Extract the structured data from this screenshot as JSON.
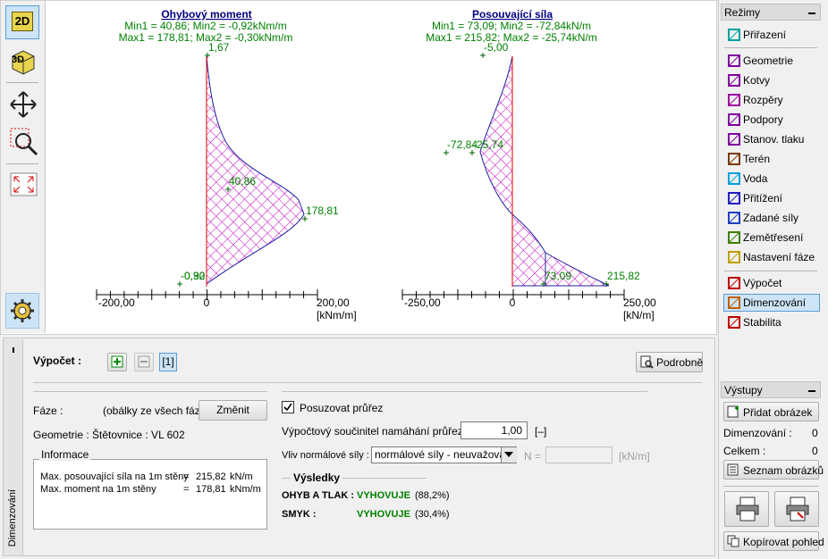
{
  "toolbar": {
    "view_2d": "2D",
    "view_3d": "3D"
  },
  "diagrams": [
    {
      "title": "Ohybový moment",
      "line1": "Min1 = 40,86; Min2 = -0,92kNm/m",
      "line2": "Max1 = 178,81; Max2 = -0,30kNm/m",
      "labels": [
        "1,67",
        "40,86",
        "178,81",
        "-0,92",
        "-0,30"
      ],
      "axis_ticks": [
        "-200,00",
        "0",
        "200,00"
      ],
      "unit": "[kNm/m]"
    },
    {
      "title": "Posouvající síla",
      "line1": "Min1 = 73,09; Min2 = -72,84kN/m",
      "line2": "Max1 = 215,82; Max2 = -25,74kN/m",
      "labels": [
        "-5,00",
        "-72,84",
        "-25,74",
        "73,09",
        "215,82"
      ],
      "axis_ticks": [
        "-250,00",
        "0",
        "250,00"
      ],
      "unit": "[kN/m]"
    }
  ],
  "modes": {
    "title": "Režimy",
    "items": [
      "Přiřazení",
      "Geometrie",
      "Kotvy",
      "Rozpěry",
      "Podpory",
      "Stanov. tlaku",
      "Terén",
      "Voda",
      "Přitížení",
      "Zadané síly",
      "Zemětřesení",
      "Nastavení fáze",
      "Výpočet",
      "Dimenzování",
      "Stabilita"
    ]
  },
  "calculation": {
    "label": "Výpočet :",
    "stage_tab": "[1]",
    "details_button": "Podrobně",
    "stage_label": "Fáze :",
    "stage_value": "(obálky ze všech fází)",
    "change_button": "Změnit",
    "geometry": "Geometrie : Štětovnice : VL 602",
    "info_title": "Informace",
    "info_rows": [
      [
        "Max. posouvající síla na 1m stěny",
        "=",
        "215,82",
        "kN/m"
      ],
      [
        "Max. moment na 1m stěny",
        "=",
        "178,81",
        "kNm/m"
      ]
    ],
    "check_section": "Posuzovat průřez",
    "coef_label": "Výpočtový součinitel namáhání průřezu :",
    "coef_value": "1,00",
    "coef_unit": "[–]",
    "normal_label": "Vliv normálové síly :",
    "normal_value": "normálové síly - neuvažovat",
    "n_label": "N =",
    "n_unit": "[kN/m]",
    "results_title": "Výsledky",
    "results": [
      {
        "label": "OHYB A TLAK :",
        "status": "VYHOVUJE",
        "ratio": "(88,2%)"
      },
      {
        "label": "SMYK :",
        "status": "VYHOVUJE",
        "ratio": "(30,4%)"
      }
    ],
    "side_tab": "Dimenzování"
  },
  "outputs": {
    "title": "Výstupy",
    "add_image": "Přidat obrázek",
    "count_label": "Dimenzování :",
    "count_value": "0",
    "total_label": "Celkem :",
    "total_value": "0",
    "image_list": "Seznam obrázků",
    "copy_view": "Kopírovat pohled"
  }
}
